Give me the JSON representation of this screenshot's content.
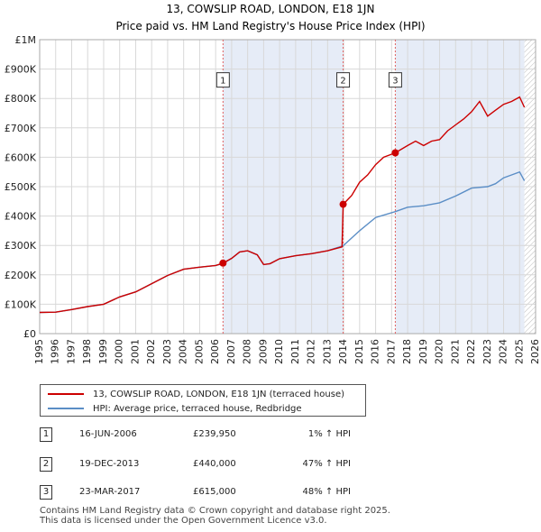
{
  "title_line1": "13, COWSLIP ROAD, LONDON, E18 1JN",
  "title_line2": "Price paid vs. HM Land Registry's House Price Index (HPI)",
  "chart_data": {
    "type": "line",
    "x_range": [
      1995,
      2026
    ],
    "ylim": [
      0,
      1000000
    ],
    "x_ticks": [
      1995,
      1996,
      1997,
      1998,
      1999,
      2000,
      2001,
      2002,
      2003,
      2004,
      2005,
      2006,
      2007,
      2008,
      2009,
      2010,
      2011,
      2012,
      2013,
      2014,
      2015,
      2016,
      2017,
      2018,
      2019,
      2020,
      2021,
      2022,
      2023,
      2024,
      2025,
      2026
    ],
    "y_ticks": [
      {
        "value": 0,
        "label": "£0"
      },
      {
        "value": 100000,
        "label": "£100K"
      },
      {
        "value": 200000,
        "label": "£200K"
      },
      {
        "value": 300000,
        "label": "£300K"
      },
      {
        "value": 400000,
        "label": "£400K"
      },
      {
        "value": 500000,
        "label": "£500K"
      },
      {
        "value": 600000,
        "label": "£600K"
      },
      {
        "value": 700000,
        "label": "£700K"
      },
      {
        "value": 800000,
        "label": "£800K"
      },
      {
        "value": 900000,
        "label": "£900K"
      },
      {
        "value": 1000000,
        "label": "£1M"
      }
    ],
    "grid": true,
    "shaded_periods": [
      [
        2006.46,
        2013.97
      ],
      [
        2017.23,
        2025.3
      ]
    ],
    "future_hatch_start": 2025.3,
    "series": [
      {
        "name": "13, COWSLIP ROAD, LONDON, E18 1JN (terraced house)",
        "color": "#cc0000",
        "points": [
          [
            1995.0,
            72000
          ],
          [
            1996.0,
            73000
          ],
          [
            1997.0,
            82000
          ],
          [
            1998.0,
            92000
          ],
          [
            1999.0,
            100000
          ],
          [
            2000.0,
            125000
          ],
          [
            2001.0,
            142000
          ],
          [
            2002.0,
            170000
          ],
          [
            2003.0,
            198000
          ],
          [
            2004.0,
            219000
          ],
          [
            2005.0,
            226000
          ],
          [
            2006.0,
            232000
          ],
          [
            2006.46,
            239950
          ],
          [
            2007.0,
            256000
          ],
          [
            2007.5,
            278000
          ],
          [
            2008.0,
            282000
          ],
          [
            2008.6,
            268000
          ],
          [
            2009.0,
            235000
          ],
          [
            2009.4,
            238000
          ],
          [
            2010.0,
            255000
          ],
          [
            2011.0,
            265000
          ],
          [
            2012.0,
            272000
          ],
          [
            2013.0,
            282000
          ],
          [
            2013.9,
            295000
          ],
          [
            2013.97,
            440000
          ],
          [
            2014.5,
            470000
          ],
          [
            2015.0,
            515000
          ],
          [
            2015.5,
            540000
          ],
          [
            2016.0,
            575000
          ],
          [
            2016.5,
            600000
          ],
          [
            2017.23,
            615000
          ],
          [
            2018.0,
            640000
          ],
          [
            2018.5,
            655000
          ],
          [
            2019.0,
            640000
          ],
          [
            2019.5,
            655000
          ],
          [
            2020.0,
            660000
          ],
          [
            2020.5,
            690000
          ],
          [
            2021.0,
            710000
          ],
          [
            2021.5,
            730000
          ],
          [
            2022.0,
            755000
          ],
          [
            2022.5,
            790000
          ],
          [
            2023.0,
            740000
          ],
          [
            2023.5,
            760000
          ],
          [
            2024.0,
            780000
          ],
          [
            2024.5,
            790000
          ],
          [
            2025.0,
            805000
          ],
          [
            2025.3,
            770000
          ]
        ]
      },
      {
        "name": "HPI: Average price, terraced house, Redbridge",
        "color": "#5b8ec6",
        "points": [
          [
            1995.0,
            72000
          ],
          [
            1996.0,
            73000
          ],
          [
            1997.0,
            82000
          ],
          [
            1998.0,
            92000
          ],
          [
            1999.0,
            100000
          ],
          [
            2000.0,
            125000
          ],
          [
            2001.0,
            142000
          ],
          [
            2002.0,
            170000
          ],
          [
            2003.0,
            198000
          ],
          [
            2004.0,
            219000
          ],
          [
            2005.0,
            226000
          ],
          [
            2006.0,
            232000
          ],
          [
            2006.46,
            238000
          ],
          [
            2007.0,
            256000
          ],
          [
            2007.5,
            278000
          ],
          [
            2008.0,
            282000
          ],
          [
            2008.6,
            268000
          ],
          [
            2009.0,
            235000
          ],
          [
            2009.4,
            238000
          ],
          [
            2010.0,
            255000
          ],
          [
            2011.0,
            265000
          ],
          [
            2012.0,
            272000
          ],
          [
            2013.0,
            282000
          ],
          [
            2013.97,
            299000
          ],
          [
            2015.0,
            350000
          ],
          [
            2016.0,
            395000
          ],
          [
            2017.23,
            415000
          ],
          [
            2018.0,
            430000
          ],
          [
            2019.0,
            435000
          ],
          [
            2020.0,
            445000
          ],
          [
            2021.0,
            468000
          ],
          [
            2022.0,
            495000
          ],
          [
            2023.0,
            500000
          ],
          [
            2023.5,
            510000
          ],
          [
            2024.0,
            530000
          ],
          [
            2024.5,
            540000
          ],
          [
            2025.0,
            550000
          ],
          [
            2025.3,
            520000
          ]
        ]
      }
    ],
    "sales": [
      {
        "num": "1",
        "x": 2006.46,
        "value": 239950
      },
      {
        "num": "2",
        "x": 2013.97,
        "value": 440000
      },
      {
        "num": "3",
        "x": 2017.23,
        "value": 615000
      }
    ],
    "marker_label_value": 860000
  },
  "legend": {
    "property_label": "13, COWSLIP ROAD, LONDON, E18 1JN (terraced house)",
    "hpi_label": "HPI: Average price, terraced house, Redbridge"
  },
  "sales_table": [
    {
      "num": "1",
      "date": "16-JUN-2006",
      "price": "£239,950",
      "hpi": "1% ↑ HPI"
    },
    {
      "num": "2",
      "date": "19-DEC-2013",
      "price": "£440,000",
      "hpi": "47% ↑ HPI"
    },
    {
      "num": "3",
      "date": "23-MAR-2017",
      "price": "£615,000",
      "hpi": "48% ↑ HPI"
    }
  ],
  "footer_line1": "Contains HM Land Registry data © Crown copyright and database right 2025.",
  "footer_line2": "This data is licensed under the Open Government Licence v3.0."
}
